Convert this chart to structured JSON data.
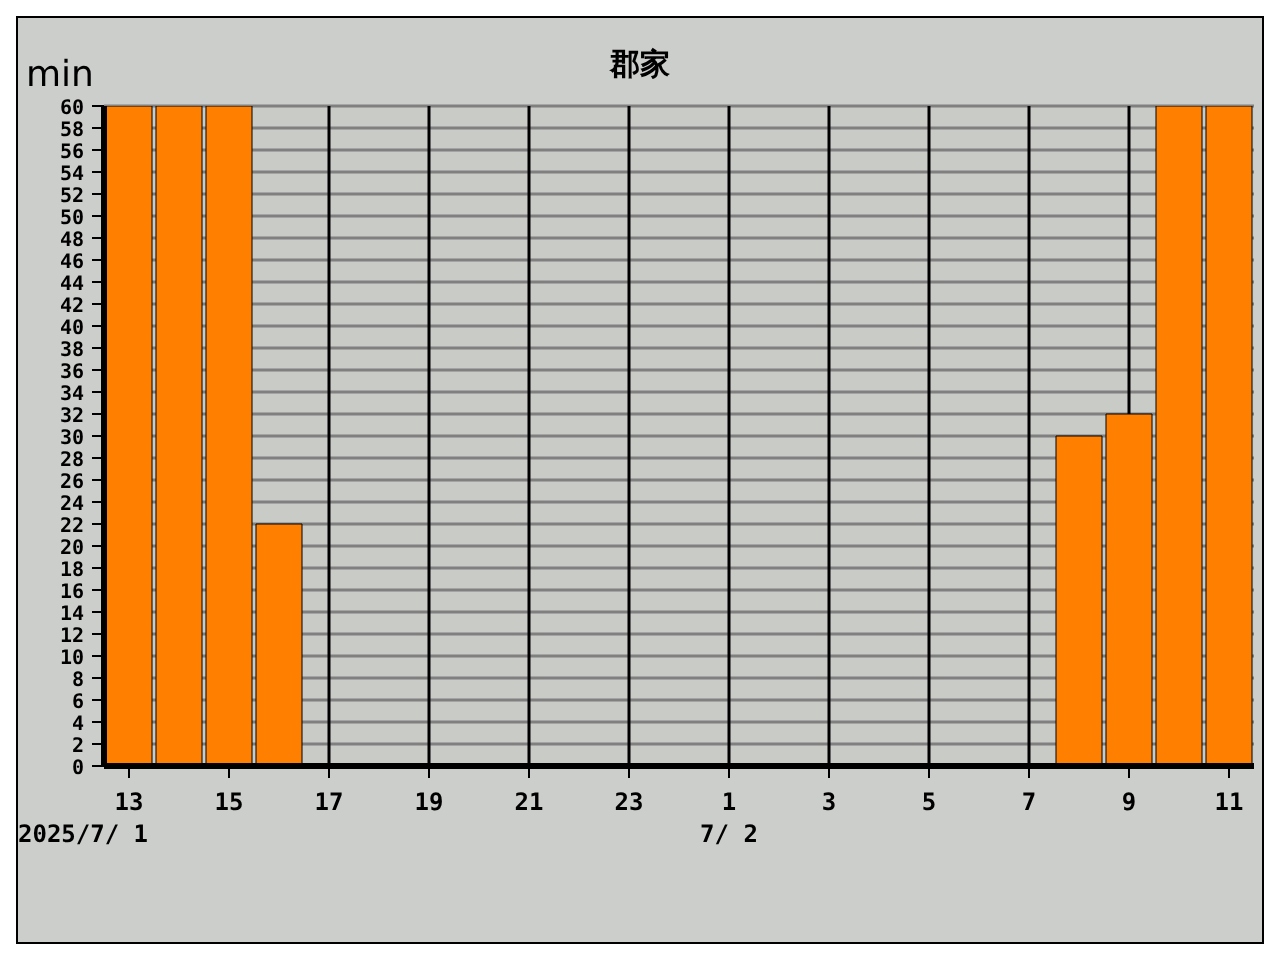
{
  "chart_data": {
    "type": "bar",
    "title": "郡家",
    "ylabel": "min",
    "categories": [
      "13",
      null,
      "15",
      null,
      "17",
      null,
      "19",
      null,
      "21",
      null,
      "23",
      null,
      "1",
      null,
      "3",
      null,
      "5",
      null,
      "7",
      null,
      "9",
      null,
      "11"
    ],
    "values": [
      60,
      60,
      60,
      22,
      0,
      0,
      0,
      0,
      0,
      0,
      0,
      0,
      0,
      0,
      0,
      0,
      0,
      0,
      0,
      30,
      32,
      60,
      60
    ],
    "color": "#ff8000",
    "ylim": [
      0,
      60
    ],
    "yticks": [
      0,
      2,
      4,
      6,
      8,
      10,
      12,
      14,
      16,
      18,
      20,
      22,
      24,
      26,
      28,
      30,
      32,
      34,
      36,
      38,
      40,
      42,
      44,
      46,
      48,
      50,
      52,
      54,
      56,
      58,
      60
    ],
    "annotations": [
      "2025/7/ 1",
      "7/ 2"
    ],
    "grid": true
  }
}
